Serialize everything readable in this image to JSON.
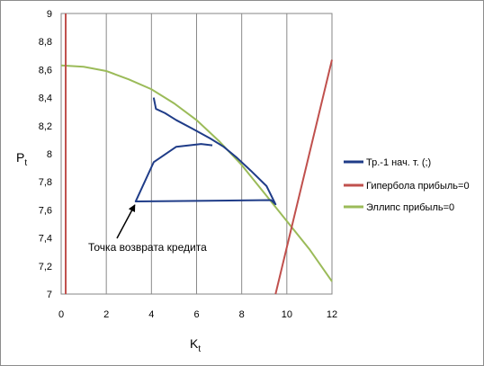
{
  "chart_data": {
    "type": "line",
    "xlabel_main": "K",
    "xlabel_sub": "t",
    "ylabel_main": "P",
    "ylabel_sub": "t",
    "xlim": [
      0,
      12
    ],
    "ylim": [
      7,
      9
    ],
    "xticks": [
      0,
      2,
      4,
      6,
      8,
      10,
      12
    ],
    "yticks": [
      7,
      7.2,
      7.4,
      7.6,
      7.8,
      8,
      8.2,
      8.4,
      8.6,
      8.8,
      9
    ],
    "xtick_labels": [
      "0",
      "2",
      "4",
      "6",
      "8",
      "10",
      "12"
    ],
    "ytick_labels": [
      "7",
      "7,2",
      "7,4",
      "7,6",
      "7,8",
      "8",
      "8,2",
      "8,4",
      "8,6",
      "8,8",
      "9"
    ],
    "grid": "vertical",
    "legend_position": "right",
    "series": [
      {
        "name": "Тр.-1 нач. т. (;)",
        "color": "#1f3c88",
        "x": [
          4.1,
          4.2,
          4.6,
          5.1,
          5.8,
          6.6,
          7.2,
          7.8,
          8.4,
          9.1,
          9.5,
          9.3,
          6.5,
          3.3,
          4.1,
          5.1,
          6.2,
          6.7
        ],
        "y": [
          8.4,
          8.32,
          8.29,
          8.24,
          8.18,
          8.11,
          8.05,
          7.97,
          7.88,
          7.77,
          7.64,
          7.67,
          7.665,
          7.66,
          7.94,
          8.05,
          8.07,
          8.06
        ]
      },
      {
        "name": "Гипербола прибыль=0",
        "color": "#c0504d",
        "segments": [
          {
            "x": [
              0.2,
              0.2
            ],
            "y": [
              7,
              9
            ]
          },
          {
            "x": [
              9.5,
              12
            ],
            "y": [
              7,
              8.67
            ]
          }
        ]
      },
      {
        "name": "Эллипс прибыль=0",
        "color": "#9bbb59",
        "x": [
          0,
          1,
          2,
          3,
          4,
          5,
          6,
          7,
          8,
          9,
          10,
          11,
          12
        ],
        "y": [
          8.63,
          8.62,
          8.59,
          8.53,
          8.46,
          8.36,
          8.24,
          8.09,
          7.92,
          7.72,
          7.52,
          7.32,
          7.09
        ]
      }
    ],
    "annotation": {
      "text": "Точка возврата кредита",
      "arrow_to": {
        "x": 3.3,
        "y": 7.66
      }
    }
  }
}
